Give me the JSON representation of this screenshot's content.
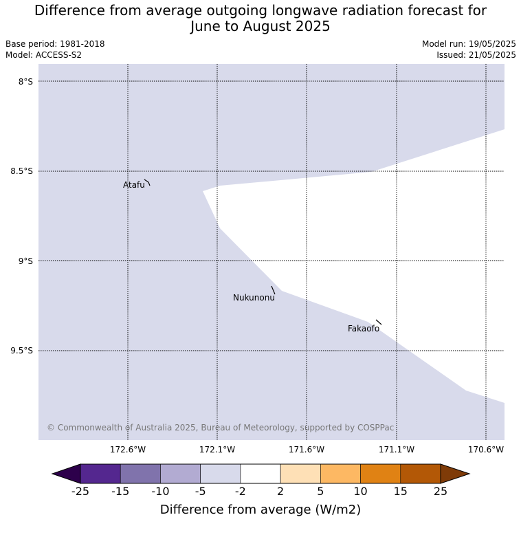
{
  "title_line1": "Difference from average outgoing longwave radiation forecast for",
  "title_line2": "June to August 2025",
  "base_period": "Base period: 1981-2018",
  "model": "Model: ACCESS-S2",
  "model_run": "Model run: 19/05/2025",
  "issued": "Issued: 21/05/2025",
  "lat_labels": [
    "8°S",
    "8.5°S",
    "9°S",
    "9.5°S"
  ],
  "lon_labels": [
    "172.6°W",
    "172.1°W",
    "171.6°W",
    "171.1°W",
    "170.6°W"
  ],
  "places": [
    {
      "name": "Atafu"
    },
    {
      "name": "Nukunonu"
    },
    {
      "name": "Fakaofo"
    }
  ],
  "copyright": "© Commonwealth of Australia 2025, Bureau of Meteorology, supported by COSPPac",
  "colorbar": {
    "label": "Difference from average (W/m2)",
    "ticks": [
      "-25",
      "-15",
      "-10",
      "-5",
      "-2",
      "2",
      "5",
      "10",
      "15",
      "25"
    ],
    "colors": [
      "#54278f",
      "#8073ac",
      "#b2abd2",
      "#d8daeb",
      "#ffffff",
      "#fee0b6",
      "#fdb863",
      "#e08214",
      "#b35806"
    ],
    "under_color": "#2d004b",
    "over_color": "#7f3b08"
  },
  "fill_color": "#d8daeb"
}
